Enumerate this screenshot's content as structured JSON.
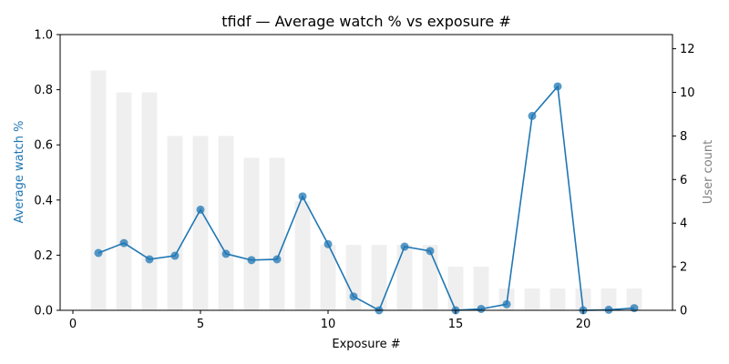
{
  "chart_data": {
    "type": "bar+line",
    "title": "tfidf — Average watch % vs exposure #",
    "xlabel": "Exposure #",
    "ylabel_left": "Average watch %",
    "ylabel_right": "User count",
    "xlim": [
      -0.5,
      23.5
    ],
    "ylim_left": [
      0,
      1.0
    ],
    "ylim_right": [
      0,
      12.65
    ],
    "x_ticks": [
      0,
      5,
      10,
      15,
      20
    ],
    "y_ticks_left": [
      "0.0",
      "0.2",
      "0.4",
      "0.6",
      "0.8",
      "1.0"
    ],
    "y_ticks_right": [
      "0",
      "2",
      "4",
      "6",
      "8",
      "10",
      "12"
    ],
    "x": [
      1,
      2,
      3,
      4,
      5,
      6,
      7,
      8,
      9,
      10,
      11,
      12,
      13,
      14,
      15,
      16,
      17,
      18,
      19,
      20,
      21,
      22
    ],
    "series": [
      {
        "name": "",
        "kind": "bar",
        "axis": "right",
        "color": "#efefef",
        "values": [
          11,
          10,
          10,
          8,
          8,
          8,
          7,
          7,
          5,
          3,
          3,
          3,
          3,
          3,
          2,
          2,
          1,
          1,
          1,
          1,
          1,
          1
        ]
      },
      {
        "name": "",
        "kind": "line",
        "axis": "left",
        "color": "#1f77b4",
        "values": [
          0.208,
          0.244,
          0.185,
          0.198,
          0.365,
          0.205,
          0.182,
          0.185,
          0.413,
          0.24,
          0.05,
          0.0,
          0.231,
          0.215,
          0.0,
          0.005,
          0.022,
          0.705,
          0.812,
          0.0,
          0.002,
          0.008
        ]
      }
    ],
    "colors": {
      "left_axis_label": "#1f77b4",
      "right_axis_label": "#808080"
    }
  }
}
